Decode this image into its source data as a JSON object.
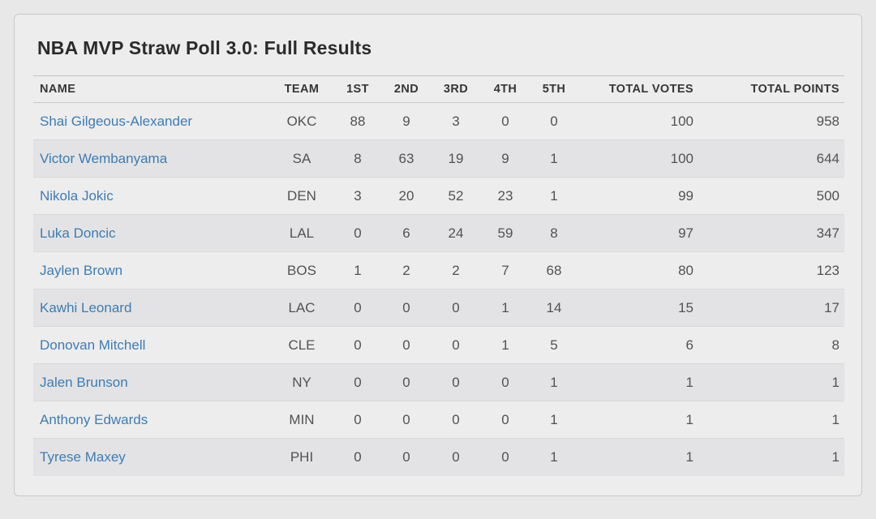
{
  "page": {
    "title": "NBA MVP Straw Poll 3.0: Full Results"
  },
  "colors": {
    "page_bg": "#e8e8e8",
    "card_bg": "#ededed",
    "card_border": "#c9c9c9",
    "row_stripe": "#e3e3e5",
    "row_divider": "#d9d9d9",
    "title_text": "#2b2b2b",
    "header_text": "#363636",
    "cell_text": "#525254",
    "link_blue": "#3e7cb2"
  },
  "table": {
    "columns": [
      {
        "key": "name",
        "label": "NAME",
        "align": "left"
      },
      {
        "key": "team",
        "label": "TEAM",
        "align": "center"
      },
      {
        "key": "first",
        "label": "1ST",
        "align": "center"
      },
      {
        "key": "second",
        "label": "2ND",
        "align": "center"
      },
      {
        "key": "third",
        "label": "3RD",
        "align": "center"
      },
      {
        "key": "fourth",
        "label": "4TH",
        "align": "center"
      },
      {
        "key": "fifth",
        "label": "5TH",
        "align": "center"
      },
      {
        "key": "total_votes",
        "label": "TOTAL VOTES",
        "align": "right"
      },
      {
        "key": "total_points",
        "label": "TOTAL POINTS",
        "align": "right"
      }
    ],
    "rows": [
      {
        "name": "Shai Gilgeous-Alexander",
        "team": "OKC",
        "first": "88",
        "second": "9",
        "third": "3",
        "fourth": "0",
        "fifth": "0",
        "total_votes": "100",
        "total_points": "958"
      },
      {
        "name": "Victor Wembanyama",
        "team": "SA",
        "first": "8",
        "second": "63",
        "third": "19",
        "fourth": "9",
        "fifth": "1",
        "total_votes": "100",
        "total_points": "644"
      },
      {
        "name": "Nikola Jokic",
        "team": "DEN",
        "first": "3",
        "second": "20",
        "third": "52",
        "fourth": "23",
        "fifth": "1",
        "total_votes": "99",
        "total_points": "500"
      },
      {
        "name": "Luka Doncic",
        "team": "LAL",
        "first": "0",
        "second": "6",
        "third": "24",
        "fourth": "59",
        "fifth": "8",
        "total_votes": "97",
        "total_points": "347"
      },
      {
        "name": "Jaylen Brown",
        "team": "BOS",
        "first": "1",
        "second": "2",
        "third": "2",
        "fourth": "7",
        "fifth": "68",
        "total_votes": "80",
        "total_points": "123"
      },
      {
        "name": "Kawhi Leonard",
        "team": "LAC",
        "first": "0",
        "second": "0",
        "third": "0",
        "fourth": "1",
        "fifth": "14",
        "total_votes": "15",
        "total_points": "17"
      },
      {
        "name": "Donovan Mitchell",
        "team": "CLE",
        "first": "0",
        "second": "0",
        "third": "0",
        "fourth": "1",
        "fifth": "5",
        "total_votes": "6",
        "total_points": "8"
      },
      {
        "name": "Jalen Brunson",
        "team": "NY",
        "first": "0",
        "second": "0",
        "third": "0",
        "fourth": "0",
        "fifth": "1",
        "total_votes": "1",
        "total_points": "1"
      },
      {
        "name": "Anthony Edwards",
        "team": "MIN",
        "first": "0",
        "second": "0",
        "third": "0",
        "fourth": "0",
        "fifth": "1",
        "total_votes": "1",
        "total_points": "1"
      },
      {
        "name": "Tyrese Maxey",
        "team": "PHI",
        "first": "0",
        "second": "0",
        "third": "0",
        "fourth": "0",
        "fifth": "1",
        "total_votes": "1",
        "total_points": "1"
      }
    ]
  }
}
